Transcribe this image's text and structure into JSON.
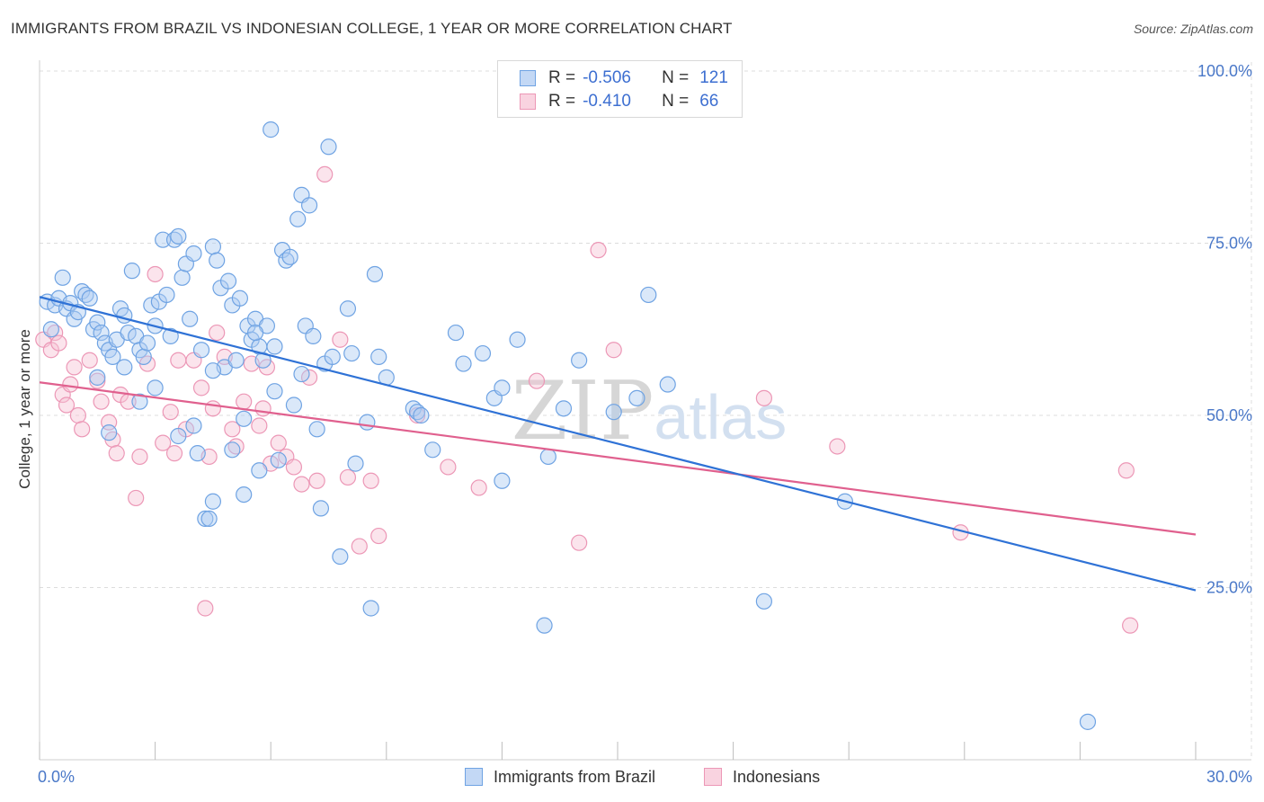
{
  "title": "IMMIGRANTS FROM BRAZIL VS INDONESIAN COLLEGE, 1 YEAR OR MORE CORRELATION CHART",
  "source": "Source: ZipAtlas.com",
  "watermark": "ZIPatlas",
  "legend": {
    "rows": [
      {
        "r_label": "R =",
        "r_value": "-0.506",
        "n_label": "N =",
        "n_value": "121",
        "color": "#6fa3e3"
      },
      {
        "r_label": "R =",
        "r_value": "-0.410",
        "n_label": "N =",
        "n_value": "66",
        "color": "#f08fb0"
      }
    ]
  },
  "bottom_legend": {
    "series1": "Immigrants from Brazil",
    "series2": "Indonesians"
  },
  "colors": {
    "blue_fill": "#aecbf2",
    "blue_stroke": "#6fa3e3",
    "blue_line": "#2f72d6",
    "pink_fill": "#f7c3d4",
    "pink_stroke": "#ec97b6",
    "pink_line": "#e0608e",
    "tick_text": "#4a78c8",
    "grid": "#dcdcdc"
  },
  "chart_data": {
    "type": "scatter",
    "title": "IMMIGRANTS FROM BRAZIL VS INDONESIAN COLLEGE, 1 YEAR OR MORE CORRELATION CHART",
    "xlabel": "",
    "ylabel": "College, 1 year or more",
    "xlim": [
      0,
      30
    ],
    "ylim": [
      0,
      100
    ],
    "x_tick_labels": [
      "0.0%",
      "30.0%"
    ],
    "y_tick_labels": [
      "25.0%",
      "50.0%",
      "75.0%",
      "100.0%"
    ],
    "y_ticks": [
      25,
      50,
      75,
      100
    ],
    "grid": true,
    "legend_position": "top-center",
    "series": [
      {
        "name": "Immigrants from Brazil",
        "trend": {
          "x": [
            0,
            30
          ],
          "y": [
            67.2,
            24.6
          ]
        },
        "points": [
          [
            0.2,
            66.5
          ],
          [
            0.4,
            66
          ],
          [
            0.5,
            67
          ],
          [
            0.6,
            70
          ],
          [
            0.7,
            65.5
          ],
          [
            0.8,
            66.3
          ],
          [
            0.9,
            64
          ],
          [
            1.0,
            65
          ],
          [
            1.1,
            68
          ],
          [
            1.2,
            67.5
          ],
          [
            1.3,
            67
          ],
          [
            1.4,
            62.5
          ],
          [
            1.5,
            63.5
          ],
          [
            1.6,
            62
          ],
          [
            1.7,
            60.5
          ],
          [
            1.8,
            59.5
          ],
          [
            1.9,
            58.5
          ],
          [
            2.0,
            61
          ],
          [
            2.1,
            65.5
          ],
          [
            2.2,
            64.5
          ],
          [
            2.3,
            62
          ],
          [
            2.4,
            71
          ],
          [
            2.5,
            61.5
          ],
          [
            2.6,
            59.5
          ],
          [
            2.7,
            58.5
          ],
          [
            2.8,
            60.5
          ],
          [
            2.9,
            66
          ],
          [
            3.0,
            63
          ],
          [
            3.1,
            66.5
          ],
          [
            3.2,
            75.5
          ],
          [
            3.3,
            67.5
          ],
          [
            3.4,
            61.5
          ],
          [
            3.5,
            75.5
          ],
          [
            3.6,
            76
          ],
          [
            3.7,
            70
          ],
          [
            3.8,
            72
          ],
          [
            3.9,
            64
          ],
          [
            4.0,
            73.5
          ],
          [
            4.1,
            44.5
          ],
          [
            4.2,
            59.5
          ],
          [
            4.3,
            35
          ],
          [
            4.4,
            35
          ],
          [
            4.5,
            74.5
          ],
          [
            4.5,
            37.5
          ],
          [
            4.6,
            72.5
          ],
          [
            4.7,
            68.5
          ],
          [
            4.8,
            57
          ],
          [
            4.9,
            69.5
          ],
          [
            5.0,
            66
          ],
          [
            5.1,
            58
          ],
          [
            5.2,
            67
          ],
          [
            5.3,
            38.5
          ],
          [
            5.3,
            49.5
          ],
          [
            5.4,
            63
          ],
          [
            5.5,
            61
          ],
          [
            5.6,
            64
          ],
          [
            5.7,
            60
          ],
          [
            5.7,
            42
          ],
          [
            5.8,
            58
          ],
          [
            5.9,
            63
          ],
          [
            6.0,
            91.5
          ],
          [
            6.1,
            53.5
          ],
          [
            6.2,
            43.5
          ],
          [
            6.3,
            74
          ],
          [
            6.4,
            72.5
          ],
          [
            6.5,
            73
          ],
          [
            6.6,
            51.5
          ],
          [
            6.7,
            78.5
          ],
          [
            6.8,
            82
          ],
          [
            6.9,
            63
          ],
          [
            7.0,
            80.5
          ],
          [
            7.1,
            61.5
          ],
          [
            7.3,
            36.5
          ],
          [
            7.4,
            57.5
          ],
          [
            7.5,
            89
          ],
          [
            7.6,
            58.5
          ],
          [
            7.8,
            29.5
          ],
          [
            8.0,
            65.5
          ],
          [
            8.1,
            59
          ],
          [
            8.2,
            43
          ],
          [
            8.5,
            49
          ],
          [
            8.6,
            22
          ],
          [
            8.7,
            70.5
          ],
          [
            9.0,
            55.5
          ],
          [
            9.7,
            51
          ],
          [
            9.8,
            50.5
          ],
          [
            10.2,
            45
          ],
          [
            10.8,
            62
          ],
          [
            11.0,
            57.5
          ],
          [
            11.5,
            59
          ],
          [
            11.8,
            52.5
          ],
          [
            12.0,
            54
          ],
          [
            12.0,
            40.5
          ],
          [
            12.4,
            61
          ],
          [
            13.1,
            19.5
          ],
          [
            13.2,
            44
          ],
          [
            13.6,
            51
          ],
          [
            14.0,
            58
          ],
          [
            14.9,
            50.5
          ],
          [
            15.5,
            52.5
          ],
          [
            15.8,
            67.5
          ],
          [
            16.3,
            54.5
          ],
          [
            18.8,
            23
          ],
          [
            20.9,
            37.5
          ],
          [
            27.2,
            5.5
          ],
          [
            0.3,
            62.5
          ],
          [
            1.8,
            47.5
          ],
          [
            3.6,
            47
          ],
          [
            5.6,
            62
          ],
          [
            7.2,
            48
          ],
          [
            2.2,
            57
          ],
          [
            4.5,
            56.5
          ],
          [
            6.1,
            60
          ],
          [
            8.8,
            58.5
          ],
          [
            3.0,
            54
          ],
          [
            1.5,
            55.5
          ],
          [
            9.9,
            50
          ],
          [
            4.0,
            48.5
          ],
          [
            5.0,
            45
          ],
          [
            6.8,
            56
          ],
          [
            2.6,
            52
          ]
        ]
      },
      {
        "name": "Indonesians",
        "trend": {
          "x": [
            0,
            30
          ],
          "y": [
            54.8,
            32.7
          ]
        },
        "points": [
          [
            0.1,
            61
          ],
          [
            0.3,
            59.5
          ],
          [
            0.4,
            62
          ],
          [
            0.5,
            60.5
          ],
          [
            0.6,
            53
          ],
          [
            0.7,
            51.5
          ],
          [
            0.8,
            54.5
          ],
          [
            0.9,
            57
          ],
          [
            1.0,
            50
          ],
          [
            1.1,
            48
          ],
          [
            1.3,
            58
          ],
          [
            1.5,
            55
          ],
          [
            1.6,
            52
          ],
          [
            1.8,
            49
          ],
          [
            1.9,
            46.5
          ],
          [
            2.0,
            44.5
          ],
          [
            2.1,
            53
          ],
          [
            2.3,
            52
          ],
          [
            2.5,
            38
          ],
          [
            2.6,
            44
          ],
          [
            2.8,
            57.5
          ],
          [
            3.0,
            70.5
          ],
          [
            3.2,
            46
          ],
          [
            3.4,
            50.5
          ],
          [
            3.6,
            58
          ],
          [
            3.8,
            48
          ],
          [
            4.0,
            58
          ],
          [
            4.2,
            54
          ],
          [
            4.4,
            44
          ],
          [
            4.5,
            51
          ],
          [
            4.6,
            62
          ],
          [
            4.8,
            58.5
          ],
          [
            5.0,
            48
          ],
          [
            5.1,
            45.5
          ],
          [
            5.3,
            52
          ],
          [
            5.5,
            57.5
          ],
          [
            5.7,
            48.5
          ],
          [
            5.9,
            57
          ],
          [
            6.0,
            43
          ],
          [
            6.2,
            46
          ],
          [
            6.4,
            44
          ],
          [
            6.6,
            42.5
          ],
          [
            6.8,
            40
          ],
          [
            7.0,
            55.5
          ],
          [
            7.2,
            40.5
          ],
          [
            7.4,
            85
          ],
          [
            7.8,
            61
          ],
          [
            8.0,
            41
          ],
          [
            8.3,
            31
          ],
          [
            8.6,
            40.5
          ],
          [
            8.8,
            32.5
          ],
          [
            9.8,
            50
          ],
          [
            10.6,
            42.5
          ],
          [
            11.4,
            39.5
          ],
          [
            12.9,
            55
          ],
          [
            14.0,
            31.5
          ],
          [
            14.5,
            74
          ],
          [
            14.9,
            59.5
          ],
          [
            18.8,
            52.5
          ],
          [
            20.7,
            45.5
          ],
          [
            23.9,
            33
          ],
          [
            28.2,
            42
          ],
          [
            28.3,
            19.5
          ],
          [
            4.3,
            22
          ],
          [
            3.5,
            44.5
          ],
          [
            5.8,
            51
          ]
        ]
      }
    ]
  }
}
